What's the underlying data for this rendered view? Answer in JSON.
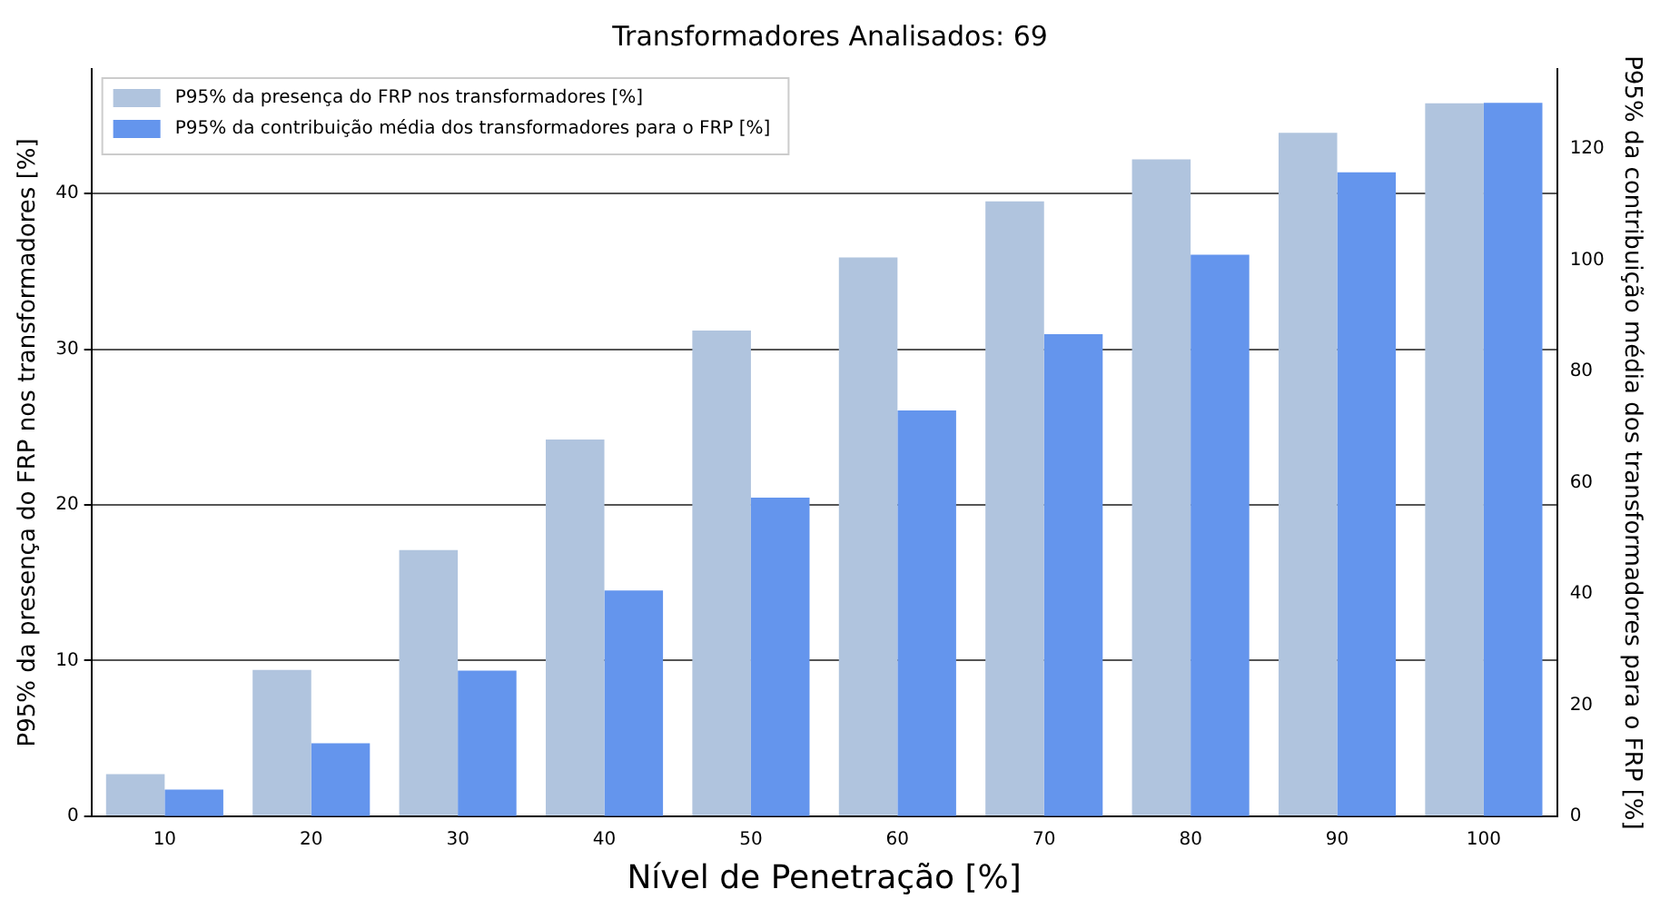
{
  "chart_data": {
    "type": "bar",
    "title": "Transformadores Analisados: 69",
    "xlabel": "Nível de Penetração [%]",
    "ylabel": "P95% da presença do FRP nos transformadores [%]",
    "y2label": "P95% da contribuição média dos transformadores para o FRP [%]",
    "categories": [
      "10",
      "20",
      "30",
      "40",
      "50",
      "60",
      "70",
      "80",
      "90",
      "100"
    ],
    "series": [
      {
        "name": "P95% da presença do FRP nos transformadores [%]",
        "color": "#b0c4de",
        "values": [
          2.7,
          9.4,
          17.1,
          24.2,
          31.2,
          35.9,
          39.5,
          42.2,
          43.9,
          45.8
        ]
      },
      {
        "name": "P95% da contribuição média dos transformadores para o FRP [%]",
        "color": "#6495ed",
        "axis": "y2",
        "values": [
          4.8,
          13.1,
          26.2,
          40.6,
          57.3,
          73.0,
          86.7,
          101.0,
          115.8,
          128.3
        ]
      }
    ],
    "ylim": [
      0,
      48
    ],
    "yticks": [
      0,
      10,
      20,
      30,
      40
    ],
    "y2lim": [
      0,
      134.4
    ],
    "y2ticks": [
      0,
      20,
      40,
      60,
      80,
      100,
      120
    ],
    "grid": "y",
    "legend": "top left"
  }
}
